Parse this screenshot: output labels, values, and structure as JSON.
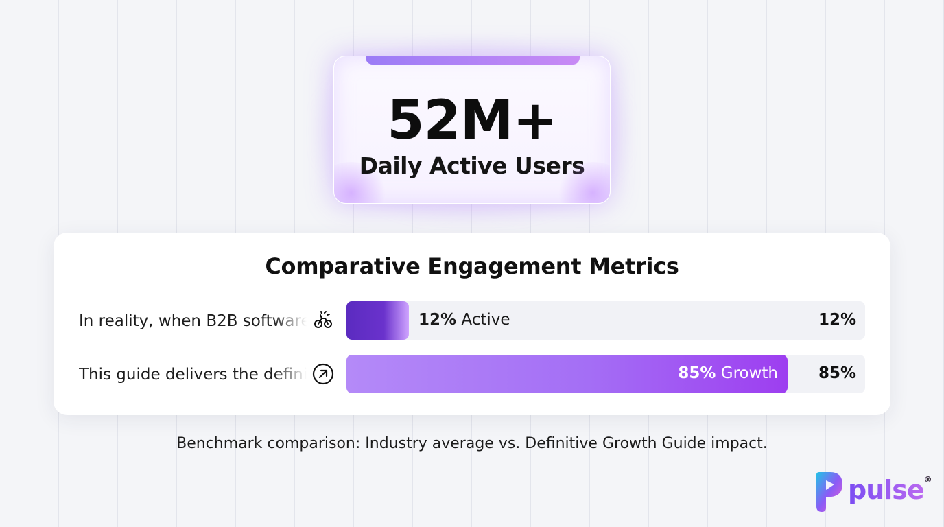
{
  "hero": {
    "value": "52M+",
    "label": "Daily Active Users"
  },
  "panel": {
    "title": "Comparative Engagement Metrics"
  },
  "chart_data": {
    "type": "bar",
    "orientation": "horizontal",
    "title": "Comparative Engagement Metrics",
    "categories": [
      "In reality, when B2B software",
      "This guide delivers the defini"
    ],
    "values": [
      12,
      85
    ],
    "bar_labels": [
      "12% Active",
      "85% Growth"
    ],
    "end_labels": [
      "12%",
      "85%"
    ],
    "xlim": [
      0,
      100
    ],
    "colors": [
      "#5b2bc0",
      "#a46ef5"
    ],
    "icons": [
      "broken-chain-icon",
      "arrow-up-right-circle-icon"
    ]
  },
  "caption": "Benchmark comparison: Industry average vs. Definitive Growth Guide impact.",
  "brand": {
    "name": "pulse",
    "mark": "®"
  }
}
